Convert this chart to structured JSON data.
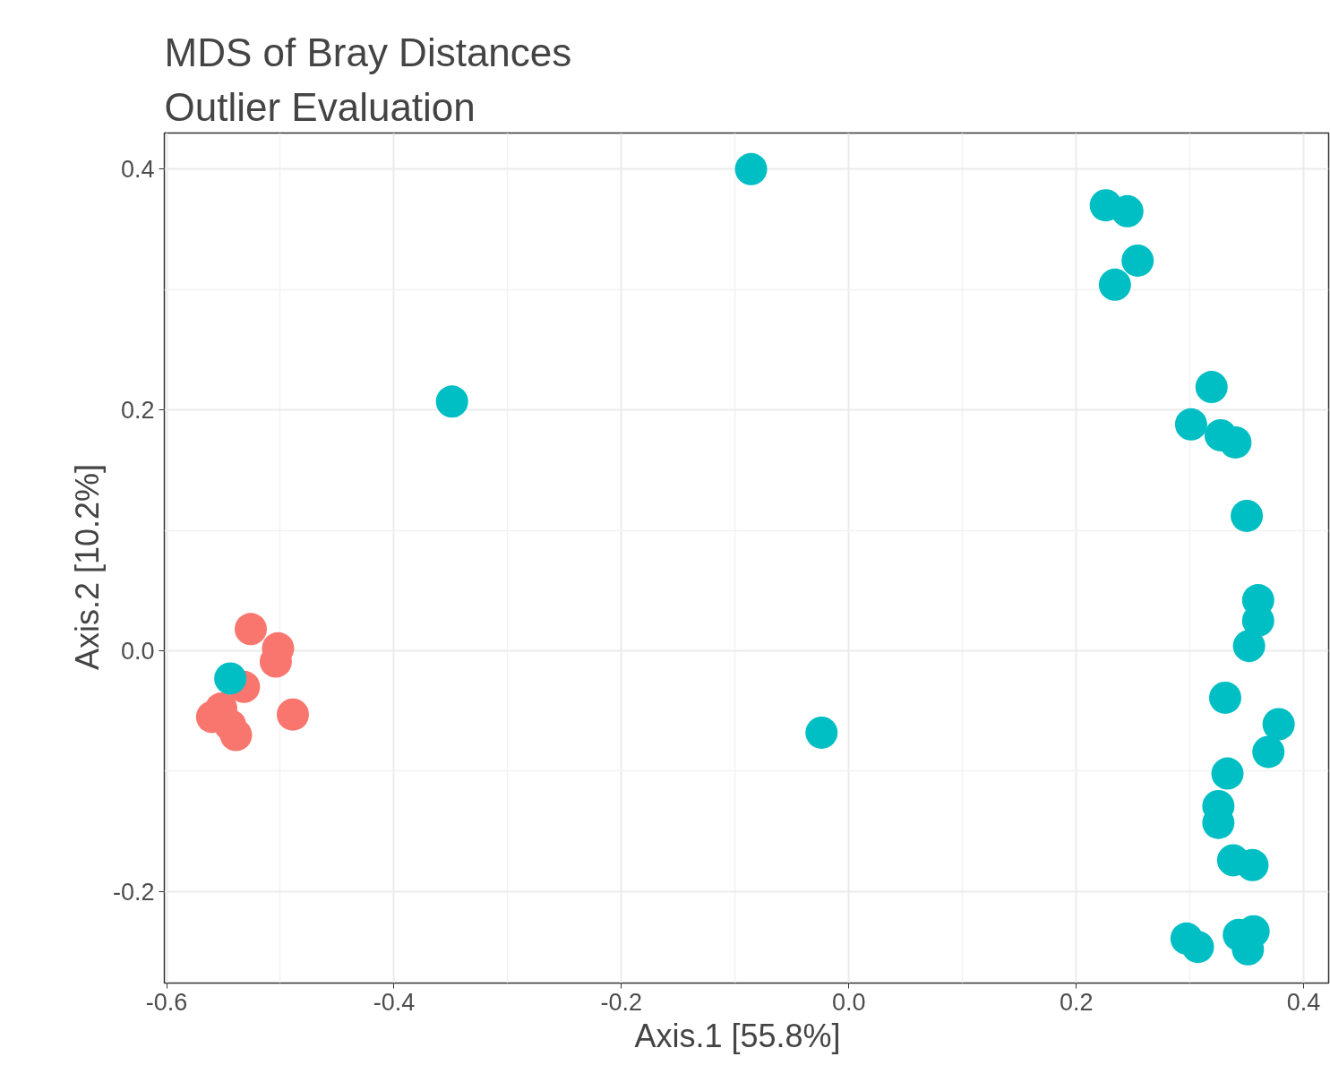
{
  "chart_data": {
    "type": "scatter",
    "title": "MDS of Bray Distances",
    "subtitle": "Outlier Evaluation",
    "xlabel": "Axis.1   [55.8%]",
    "ylabel": "Axis.2   [10.2%]",
    "xlim": [
      -0.602,
      0.422
    ],
    "ylim": [
      -0.276,
      0.43
    ],
    "xticks": [
      -0.6,
      -0.4,
      -0.2,
      {
        "value": 0,
        "label": "0.0"
      },
      0.2,
      0.4
    ],
    "yticks": [
      -0.2,
      {
        "value": 0,
        "label": "0.0"
      },
      0.2,
      0.4
    ],
    "grid": true,
    "marker": "circle",
    "series": [
      {
        "color": "#f8766d",
        "x": [
          -0.526,
          -0.502,
          -0.504,
          -0.532,
          -0.552,
          -0.489,
          -0.539,
          -0.56,
          -0.544
        ],
        "values": [
          0.018,
          0.002,
          -0.009,
          -0.03,
          -0.048,
          -0.053,
          -0.07,
          -0.055,
          -0.062
        ]
      },
      {
        "color": "#00bfc4",
        "x": [
          0.226,
          0.245,
          0.254,
          0.234,
          0.319,
          0.301,
          0.327,
          0.34,
          0.35,
          0.36,
          0.36,
          0.352,
          0.331,
          0.378,
          0.369,
          0.333,
          0.325,
          0.325,
          0.338,
          0.355,
          0.297,
          0.307,
          0.343,
          0.356,
          0.351,
          -0.086,
          -0.349,
          -0.024,
          -0.544
        ],
        "values": [
          0.37,
          0.365,
          0.324,
          0.304,
          0.219,
          0.188,
          0.179,
          0.173,
          0.112,
          0.042,
          0.025,
          0.004,
          -0.039,
          -0.061,
          -0.084,
          -0.102,
          -0.129,
          -0.143,
          -0.174,
          -0.178,
          -0.239,
          -0.246,
          -0.236,
          -0.233,
          -0.248,
          0.4,
          0.207,
          -0.068,
          -0.023
        ]
      }
    ]
  }
}
